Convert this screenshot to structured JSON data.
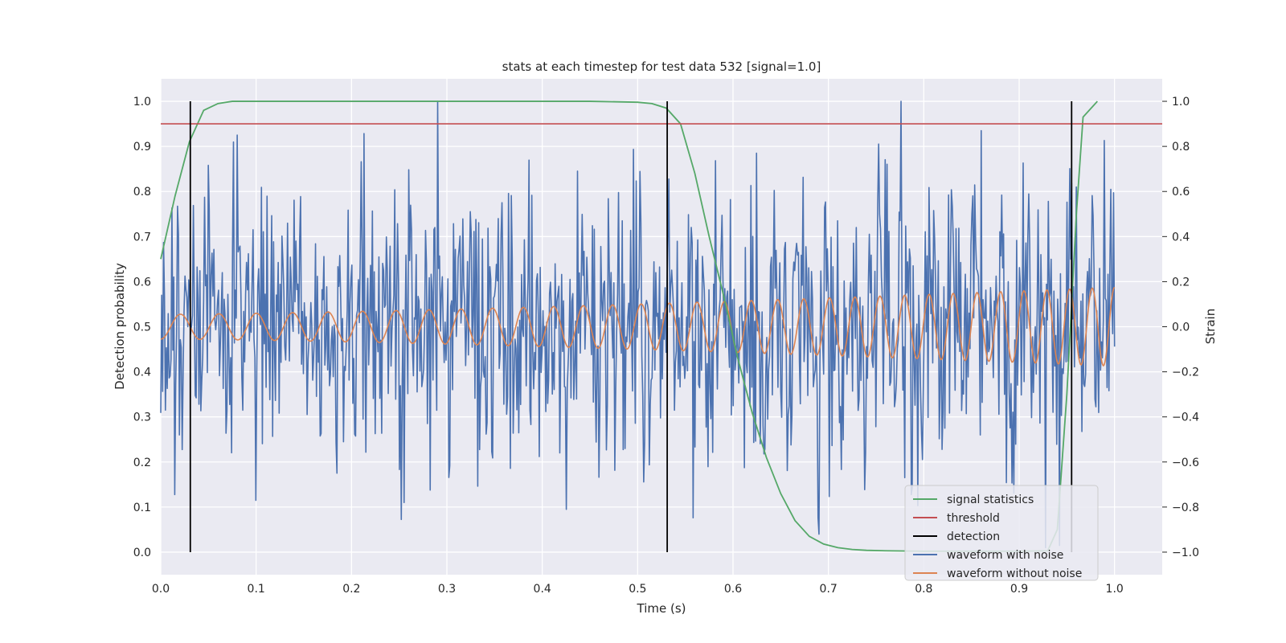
{
  "chart_data": {
    "type": "line",
    "title": "stats at each timestep for test data 532 [signal=1.0]",
    "xlabel": "Time (s)",
    "ylabel": "Detection probability",
    "y2label": "Strain",
    "xlim": [
      0.0,
      1.05
    ],
    "ylim": [
      -0.05,
      1.05
    ],
    "y2lim": [
      -1.1,
      1.1
    ],
    "xticks": [
      "0.0",
      "0.1",
      "0.2",
      "0.3",
      "0.4",
      "0.5",
      "0.6",
      "0.7",
      "0.8",
      "0.9",
      "1.0"
    ],
    "yticks": [
      "0.0",
      "0.1",
      "0.2",
      "0.3",
      "0.4",
      "0.5",
      "0.6",
      "0.7",
      "0.8",
      "0.9",
      "1.0"
    ],
    "y2ticks": [
      "−1.0",
      "−0.8",
      "−0.6",
      "−0.4",
      "−0.2",
      "0.0",
      "0.2",
      "0.4",
      "0.6",
      "0.8",
      "1.0"
    ],
    "grid": true,
    "legend_position": "bottom-right",
    "colors": {
      "background": "#eaeaf2",
      "grid": "#ffffff",
      "signal_statistics": "#55a868",
      "threshold": "#c44e52",
      "detection": "#000000",
      "waveform_with_noise": "#4c72b0",
      "waveform_without_noise": "#dd8452"
    },
    "series": [
      {
        "name": "signal statistics",
        "axis": "left",
        "x": [
          0.0,
          0.015,
          0.03,
          0.045,
          0.06,
          0.075,
          0.1,
          0.2,
          0.3,
          0.4,
          0.45,
          0.5,
          0.515,
          0.53,
          0.545,
          0.56,
          0.575,
          0.59,
          0.605,
          0.62,
          0.635,
          0.65,
          0.665,
          0.68,
          0.695,
          0.71,
          0.725,
          0.74,
          0.76,
          0.8,
          0.9,
          0.93,
          0.94,
          0.95,
          0.96,
          0.967,
          0.982
        ],
        "values": [
          0.65,
          0.79,
          0.91,
          0.98,
          0.995,
          1.0,
          1.0,
          1.0,
          1.0,
          1.0,
          1.0,
          0.998,
          0.995,
          0.985,
          0.95,
          0.84,
          0.7,
          0.57,
          0.43,
          0.31,
          0.21,
          0.13,
          0.07,
          0.035,
          0.018,
          0.01,
          0.006,
          0.004,
          0.003,
          0.002,
          0.002,
          0.003,
          0.05,
          0.35,
          0.75,
          0.965,
          1.0
        ]
      },
      {
        "name": "threshold",
        "axis": "left",
        "x": [
          0.0,
          1.05
        ],
        "values": [
          0.95,
          0.95
        ]
      },
      {
        "name": "detection",
        "axis": "left",
        "x": [
          0.031,
          0.531,
          0.955
        ],
        "ymin": 0.0,
        "ymax": 1.0
      },
      {
        "name": "waveform with noise",
        "axis": "right",
        "x_range": [
          0.0,
          1.0
        ],
        "samples": 1024,
        "amplitude_std": 0.3,
        "extremes": [
          {
            "x": 0.29,
            "value": 1.0
          },
          {
            "x": 0.776,
            "value": 1.0
          },
          {
            "x": 0.08,
            "value": 0.85
          },
          {
            "x": 0.86,
            "value": 0.87
          },
          {
            "x": 0.96,
            "value": 0.62
          },
          {
            "x": 0.425,
            "value": -0.81
          },
          {
            "x": 0.69,
            "value": -0.92
          },
          {
            "x": 0.928,
            "value": -0.98
          },
          {
            "x": 0.942,
            "value": -0.97
          },
          {
            "x": 0.1,
            "value": -0.77
          },
          {
            "x": 0.255,
            "value": -0.78
          }
        ]
      },
      {
        "name": "waveform without noise",
        "axis": "right",
        "type": "chirp",
        "x_range": [
          0.0,
          1.0
        ],
        "amplitude_start": 0.055,
        "amplitude_end": 0.175,
        "frequency_start_hz": 24,
        "frequency_end_hz": 43,
        "phase_start": -1.5708
      }
    ]
  }
}
